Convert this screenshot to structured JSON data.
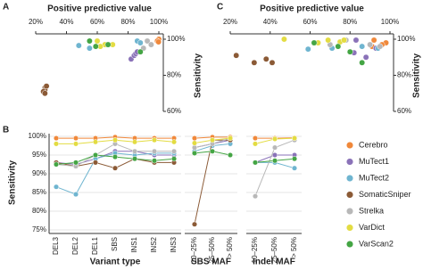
{
  "chart_data": [
    {
      "type": "scatter",
      "panel": "A",
      "title": "Positive predictive value",
      "y_label": "Sensitivity",
      "xlim": [
        20,
        100
      ],
      "xticks": [
        {
          "value": 20,
          "label": "20%"
        },
        {
          "value": 40,
          "label": "40%"
        },
        {
          "value": 60,
          "label": "60%"
        },
        {
          "value": 80,
          "label": "80%"
        },
        {
          "value": 100,
          "label": "100%"
        }
      ],
      "ylim": [
        60,
        100
      ],
      "yticks": [
        {
          "value": 60,
          "label": "60%"
        },
        {
          "value": 80,
          "label": "80%"
        },
        {
          "value": 100,
          "label": "100%"
        }
      ],
      "series": [
        {
          "color": "#f0883a",
          "x": [
            99.5,
            100,
            99,
            99.8
          ],
          "y": [
            99.5,
            100,
            99,
            98.5
          ]
        },
        {
          "color": "#8a72b8",
          "x": [
            82,
            84,
            85,
            86
          ],
          "y": [
            89,
            91,
            92,
            93
          ]
        },
        {
          "color": "#6fb5d0",
          "x": [
            86,
            88,
            48,
            55
          ],
          "y": [
            99,
            98,
            96.5,
            95
          ]
        },
        {
          "color": "#8b5a36",
          "x": [
            26,
            26,
            25,
            27,
            26
          ],
          "y": [
            73,
            72,
            71,
            74,
            70
          ]
        },
        {
          "color": "#b8b8b8",
          "x": [
            92.5,
            95,
            90
          ],
          "y": [
            99,
            97,
            95
          ]
        },
        {
          "color": "#e3dc42",
          "x": [
            65,
            70,
            60,
            62
          ],
          "y": [
            97,
            97,
            99,
            96
          ]
        },
        {
          "color": "#44a544",
          "x": [
            55,
            59,
            67,
            88
          ],
          "y": [
            99,
            96,
            97,
            93
          ]
        }
      ]
    },
    {
      "type": "scatter",
      "panel": "C",
      "title": "Positive predictive value",
      "y_label": "Sensitivity",
      "xlim": [
        20,
        100
      ],
      "xticks": [
        {
          "value": 20,
          "label": "20%"
        },
        {
          "value": 40,
          "label": "40%"
        },
        {
          "value": 60,
          "label": "60%"
        },
        {
          "value": 80,
          "label": "80%"
        },
        {
          "value": 100,
          "label": "100%"
        }
      ],
      "ylim": [
        60,
        100
      ],
      "yticks": [
        {
          "value": 60,
          "label": "60%"
        },
        {
          "value": 80,
          "label": "80%"
        },
        {
          "value": 100,
          "label": "100%"
        }
      ],
      "series": [
        {
          "color": "#f0883a",
          "x": [
            92,
            98,
            91,
            96
          ],
          "y": [
            99.5,
            98,
            96,
            97
          ]
        },
        {
          "color": "#8a72b8",
          "x": [
            82,
            83,
            93,
            88
          ],
          "y": [
            92.5,
            99.5,
            95,
            90
          ]
        },
        {
          "color": "#6fb5d0",
          "x": [
            59,
            71,
            86,
            94
          ],
          "y": [
            94.5,
            95,
            96,
            95
          ]
        },
        {
          "color": "#8b5a36",
          "x": [
            23,
            32,
            38,
            41
          ],
          "y": [
            91,
            87,
            89,
            87
          ]
        },
        {
          "color": "#b8b8b8",
          "x": [
            70,
            78,
            90,
            95
          ],
          "y": [
            97,
            99.5,
            97,
            96
          ]
        },
        {
          "color": "#e3dc42",
          "x": [
            47,
            69,
            75,
            64,
            77
          ],
          "y": [
            100,
            99.5,
            98.5,
            98,
            99.5
          ]
        },
        {
          "color": "#44a544",
          "x": [
            80,
            86,
            62,
            74
          ],
          "y": [
            93,
            87,
            98,
            96
          ]
        }
      ]
    },
    {
      "type": "line",
      "panel": "B",
      "y_label": "Sensitivity",
      "x_label": "Variant type",
      "categories": [
        "DEL3",
        "DEL2",
        "DEL1",
        "SBS",
        "INS1",
        "INS2",
        "INS3"
      ],
      "ylim": [
        75,
        100
      ],
      "yticks": [
        {
          "value": 75,
          "label": "75%"
        },
        {
          "value": 80,
          "label": "80%"
        },
        {
          "value": 85,
          "label": "85%"
        },
        {
          "value": 90,
          "label": "90%"
        },
        {
          "value": 95,
          "label": "95%"
        },
        {
          "value": 100,
          "label": "100%"
        }
      ],
      "series": [
        {
          "name": "Cerebro",
          "color": "#f0883a",
          "values": [
            99.5,
            99.5,
            99.5,
            99.8,
            99.5,
            99.5,
            99.5
          ]
        },
        {
          "name": "MuTect1",
          "color": "#8a72b8",
          "values": [
            93,
            92.5,
            94,
            96,
            96,
            95,
            95
          ]
        },
        {
          "name": "MuTect2",
          "color": "#6fb5d0",
          "values": [
            86.5,
            84.5,
            94,
            95.5,
            95,
            95.5,
            95.5
          ]
        },
        {
          "name": "SomaticSniper",
          "color": "#8b5a36",
          "values": [
            93,
            92,
            93,
            91.5,
            94,
            93,
            93
          ]
        },
        {
          "name": "Strelka",
          "color": "#b8b8b8",
          "values": [
            92.5,
            92,
            95,
            98,
            96,
            96,
            96
          ]
        },
        {
          "name": "VarDict",
          "color": "#e3dc42",
          "values": [
            98,
            98,
            98.5,
            99,
            98.5,
            99,
            98.5
          ]
        },
        {
          "name": "VarScan2",
          "color": "#44a544",
          "values": [
            92.5,
            93,
            95,
            94.5,
            94,
            93.5,
            94
          ]
        }
      ]
    },
    {
      "type": "line",
      "x_label": "SBS MAF",
      "categories": [
        "10–25%",
        "25–50%",
        "> 50%"
      ],
      "ylim": [
        75,
        100
      ],
      "series": [
        {
          "color": "#f0883a",
          "values": [
            99.5,
            99.8,
            99.8
          ]
        },
        {
          "color": "#8a72b8",
          "values": [
            97,
            98,
            99
          ]
        },
        {
          "color": "#6fb5d0",
          "values": [
            96,
            97.5,
            98
          ]
        },
        {
          "color": "#8b5a36",
          "values": [
            76.5,
            99,
            99
          ]
        },
        {
          "color": "#b8b8b8",
          "values": [
            97,
            98,
            99.5
          ]
        },
        {
          "color": "#e3dc42",
          "values": [
            98.2,
            99,
            99.5
          ]
        },
        {
          "color": "#44a544",
          "values": [
            95.5,
            96,
            95
          ]
        }
      ]
    },
    {
      "type": "line",
      "x_label": "Indel MAF",
      "categories": [
        "10–25%",
        "25–50%",
        "> 50%"
      ],
      "ylim": [
        75,
        100
      ],
      "series": [
        {
          "color": "#f0883a",
          "values": [
            99.5,
            99.5,
            99.6
          ]
        },
        {
          "color": "#8a72b8",
          "values": [
            93,
            95,
            95
          ]
        },
        {
          "color": "#6fb5d0",
          "values": [
            93,
            93,
            91.5
          ]
        },
        {
          "color": "#8b5a36",
          "values": [
            null,
            null,
            null
          ]
        },
        {
          "color": "#b8b8b8",
          "values": [
            84,
            97,
            99
          ]
        },
        {
          "color": "#e3dc42",
          "values": [
            98,
            99.3,
            99.5
          ]
        },
        {
          "color": "#44a544",
          "values": [
            93,
            93.5,
            94
          ]
        }
      ]
    }
  ]
}
